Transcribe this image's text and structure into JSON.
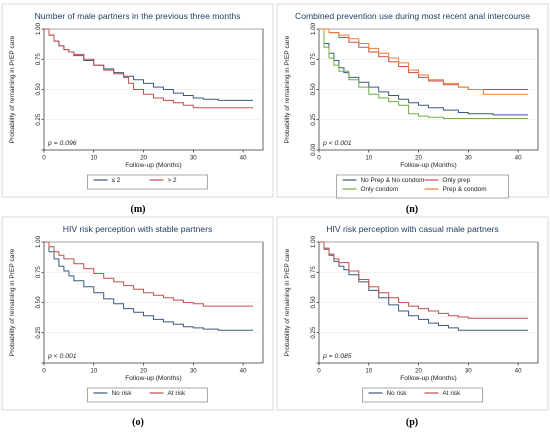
{
  "chart_data": [
    {
      "type": "line",
      "caption": "(m)",
      "title": "Number of male partners in the previous three months",
      "xlabel": "Follow-up (Months)",
      "ylabel": "Probability of remaining in PrEP care",
      "xlim": [
        0,
        44
      ],
      "ylim": [
        0,
        1
      ],
      "xticks": [
        0,
        10,
        20,
        30,
        40
      ],
      "yticks": [
        0,
        0.25,
        0.5,
        0.75,
        1.0
      ],
      "ytick_labels": [
        "",
        "0.25",
        "0.50",
        "0.75",
        "1.00"
      ],
      "annotation": "p = 0.096",
      "legend_position": "bottom",
      "legend_columns": 2,
      "series": [
        {
          "name": "≤ 2",
          "color": "#3b5a7f",
          "x": [
            0,
            1,
            2,
            3,
            4,
            5,
            6,
            8,
            10,
            12,
            14,
            16,
            18,
            20,
            22,
            24,
            26,
            28,
            30,
            32,
            35,
            42
          ],
          "y": [
            1.0,
            0.95,
            0.9,
            0.86,
            0.83,
            0.81,
            0.78,
            0.74,
            0.7,
            0.67,
            0.64,
            0.61,
            0.58,
            0.55,
            0.52,
            0.5,
            0.47,
            0.45,
            0.43,
            0.42,
            0.41,
            0.41
          ]
        },
        {
          "name": "> 2",
          "color": "#c0504d",
          "x": [
            0,
            1,
            2,
            3,
            4,
            5,
            6,
            8,
            10,
            12,
            14,
            16,
            17,
            18,
            20,
            22,
            24,
            26,
            28,
            30,
            42
          ],
          "y": [
            1.0,
            0.95,
            0.9,
            0.86,
            0.83,
            0.81,
            0.79,
            0.75,
            0.7,
            0.66,
            0.63,
            0.6,
            0.55,
            0.5,
            0.46,
            0.43,
            0.41,
            0.39,
            0.37,
            0.35,
            0.35
          ]
        }
      ]
    },
    {
      "type": "line",
      "caption": "(n)",
      "title": "Combined prevention use during most recent anal intercourse",
      "xlabel": "Follow-up (Months)",
      "ylabel": "Probability of remaining in PrEP care",
      "xlim": [
        0,
        44
      ],
      "ylim": [
        0,
        1
      ],
      "xticks": [
        0,
        10,
        20,
        30,
        40
      ],
      "yticks": [
        0,
        0.25,
        0.5,
        0.75,
        1.0
      ],
      "ytick_labels": [
        "0.00",
        "0.25",
        "0.50",
        "0.75",
        "1.00"
      ],
      "annotation": "p < 0.001",
      "legend_position": "bottom",
      "legend_columns": 2,
      "series": [
        {
          "name": "No Prep & No condom",
          "color": "#3b5a7f",
          "x": [
            0,
            1,
            2,
            3,
            4,
            5,
            6,
            8,
            10,
            12,
            14,
            16,
            18,
            20,
            22,
            25,
            28,
            30,
            35,
            42
          ],
          "y": [
            1.0,
            0.88,
            0.8,
            0.74,
            0.68,
            0.64,
            0.6,
            0.56,
            0.52,
            0.48,
            0.45,
            0.42,
            0.39,
            0.37,
            0.35,
            0.33,
            0.31,
            0.3,
            0.29,
            0.29
          ]
        },
        {
          "name": "Only prep",
          "color": "#c0504d",
          "x": [
            0,
            2,
            4,
            6,
            8,
            10,
            12,
            14,
            16,
            18,
            20,
            22,
            25,
            28,
            30,
            35,
            42
          ],
          "y": [
            1.0,
            0.97,
            0.93,
            0.89,
            0.85,
            0.81,
            0.77,
            0.73,
            0.69,
            0.64,
            0.6,
            0.57,
            0.54,
            0.52,
            0.5,
            0.5,
            0.5
          ]
        },
        {
          "name": "Only condom",
          "color": "#70ad47",
          "x": [
            0,
            1,
            2,
            3,
            4,
            6,
            8,
            10,
            12,
            14,
            16,
            18,
            20,
            22,
            25,
            30,
            42
          ],
          "y": [
            1.0,
            0.85,
            0.76,
            0.7,
            0.65,
            0.58,
            0.52,
            0.46,
            0.43,
            0.4,
            0.37,
            0.3,
            0.28,
            0.27,
            0.26,
            0.26,
            0.26
          ]
        },
        {
          "name": "Prep & condom",
          "color": "#ed7d31",
          "x": [
            0,
            2,
            4,
            6,
            8,
            10,
            12,
            14,
            16,
            18,
            20,
            22,
            25,
            28,
            30,
            33,
            42
          ],
          "y": [
            1.0,
            0.97,
            0.95,
            0.92,
            0.88,
            0.84,
            0.8,
            0.76,
            0.72,
            0.66,
            0.62,
            0.58,
            0.55,
            0.52,
            0.5,
            0.46,
            0.46
          ]
        }
      ]
    },
    {
      "type": "line",
      "caption": "(o)",
      "title": "HIV risk perception with stable partners",
      "xlabel": "Follow-up (Months)",
      "ylabel": "Probability of remaining in PrEP care",
      "xlim": [
        0,
        44
      ],
      "ylim": [
        0,
        1
      ],
      "xticks": [
        0,
        10,
        20,
        30,
        40
      ],
      "yticks": [
        0,
        0.25,
        0.5,
        0.75,
        1.0
      ],
      "ytick_labels": [
        "",
        "0.25",
        "0.50",
        "0.75",
        "1.00"
      ],
      "annotation": "p < 0.001",
      "legend_position": "bottom",
      "legend_columns": 2,
      "series": [
        {
          "name": "No risk",
          "color": "#3b5a7f",
          "x": [
            0,
            1,
            2,
            3,
            4,
            5,
            6,
            8,
            10,
            12,
            14,
            16,
            18,
            20,
            22,
            24,
            26,
            28,
            30,
            32,
            35,
            42
          ],
          "y": [
            1.0,
            0.92,
            0.86,
            0.8,
            0.76,
            0.72,
            0.68,
            0.63,
            0.58,
            0.53,
            0.49,
            0.45,
            0.42,
            0.39,
            0.36,
            0.34,
            0.32,
            0.3,
            0.29,
            0.28,
            0.27,
            0.27
          ]
        },
        {
          "name": "At risk",
          "color": "#c0504d",
          "x": [
            0,
            1,
            2,
            3,
            4,
            6,
            8,
            10,
            12,
            14,
            16,
            18,
            20,
            22,
            24,
            26,
            28,
            30,
            32,
            35,
            42
          ],
          "y": [
            1.0,
            0.96,
            0.92,
            0.89,
            0.86,
            0.82,
            0.78,
            0.74,
            0.7,
            0.67,
            0.64,
            0.61,
            0.58,
            0.56,
            0.54,
            0.52,
            0.5,
            0.49,
            0.47,
            0.47,
            0.47
          ]
        }
      ]
    },
    {
      "type": "line",
      "caption": "(p)",
      "title": "HIV risk perception with casual male partners",
      "xlabel": "Follow-up (Months)",
      "ylabel": "Probability of remaining in PrEP care",
      "xlim": [
        0,
        44
      ],
      "ylim": [
        0,
        1
      ],
      "xticks": [
        0,
        10,
        20,
        30,
        40
      ],
      "yticks": [
        0,
        0.25,
        0.5,
        0.75,
        1.0
      ],
      "ytick_labels": [
        "",
        "0.25",
        "0.50",
        "0.75",
        "1.00"
      ],
      "annotation": "p = 0.085",
      "legend_position": "bottom",
      "legend_columns": 2,
      "series": [
        {
          "name": "No risk",
          "color": "#3b5a7f",
          "x": [
            0,
            1,
            2,
            3,
            4,
            5,
            6,
            8,
            10,
            12,
            14,
            16,
            18,
            20,
            22,
            24,
            26,
            28,
            30,
            42
          ],
          "y": [
            1.0,
            0.94,
            0.89,
            0.84,
            0.8,
            0.77,
            0.73,
            0.67,
            0.6,
            0.54,
            0.48,
            0.43,
            0.39,
            0.36,
            0.33,
            0.31,
            0.29,
            0.27,
            0.27,
            0.27
          ]
        },
        {
          "name": "At risk",
          "color": "#c0504d",
          "x": [
            0,
            1,
            2,
            3,
            4,
            6,
            8,
            10,
            12,
            14,
            16,
            18,
            20,
            22,
            24,
            26,
            28,
            30,
            42
          ],
          "y": [
            1.0,
            0.95,
            0.9,
            0.86,
            0.83,
            0.76,
            0.69,
            0.63,
            0.58,
            0.54,
            0.5,
            0.47,
            0.45,
            0.43,
            0.41,
            0.39,
            0.38,
            0.37,
            0.37
          ]
        }
      ]
    }
  ]
}
